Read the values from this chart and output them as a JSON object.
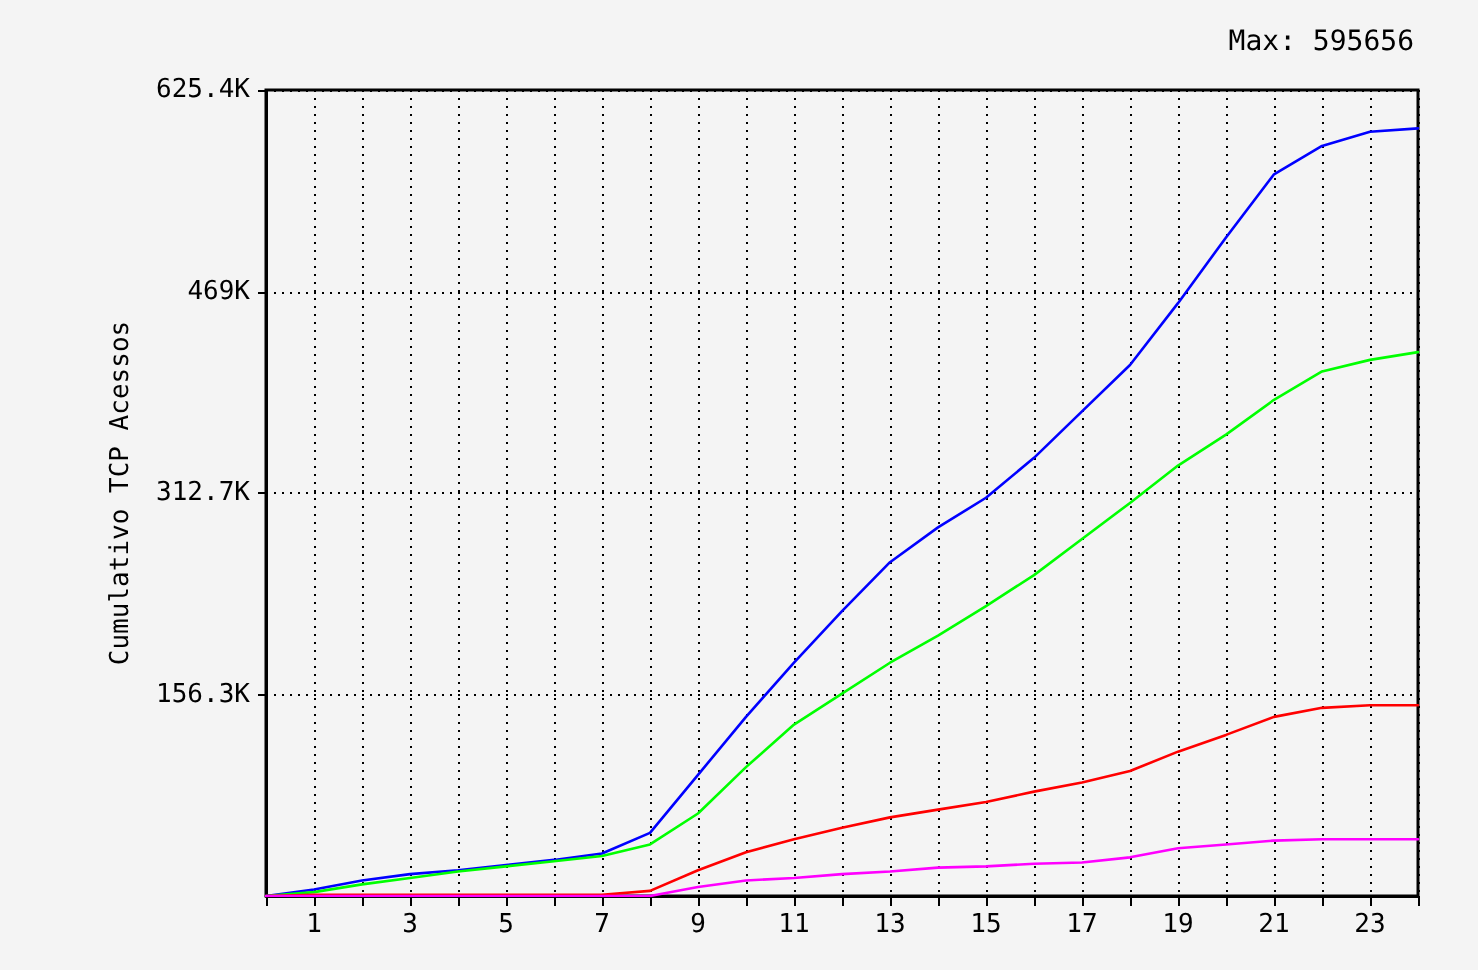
{
  "chart_data": {
    "type": "line",
    "ylabel": "Cumulativo TCP Acessos",
    "annotations": [
      "Max: 595656"
    ],
    "x": [
      0,
      1,
      2,
      3,
      4,
      5,
      6,
      7,
      8,
      9,
      10,
      11,
      12,
      13,
      14,
      15,
      16,
      17,
      18,
      19,
      20,
      21,
      22,
      23,
      24
    ],
    "series": [
      {
        "color": "#0000ff",
        "values": [
          0,
          5000,
          12000,
          17000,
          20000,
          24000,
          28000,
          33000,
          49000,
          94000,
          139000,
          181000,
          221000,
          259000,
          286000,
          309000,
          340000,
          376000,
          412000,
          460000,
          511000,
          560000,
          582000,
          593000,
          595656
        ]
      },
      {
        "color": "#00ff00",
        "values": [
          0,
          3000,
          9000,
          14000,
          19000,
          23000,
          27000,
          31000,
          40000,
          64000,
          100000,
          133000,
          157000,
          181000,
          202000,
          225000,
          249000,
          277000,
          305000,
          334000,
          358000,
          385000,
          407000,
          416000,
          422000
        ]
      },
      {
        "color": "#ff0000",
        "values": [
          0,
          1000,
          1000,
          1000,
          1000,
          1000,
          1000,
          1000,
          4000,
          20000,
          34000,
          44000,
          53000,
          61000,
          67000,
          73000,
          81000,
          88000,
          97000,
          112000,
          125000,
          139000,
          146000,
          148000,
          148000
        ]
      },
      {
        "color": "#ff00ff",
        "values": [
          0,
          0,
          0,
          0,
          0,
          0,
          0,
          0,
          0,
          7000,
          12000,
          14000,
          17000,
          19000,
          22000,
          23000,
          25000,
          26000,
          30000,
          37000,
          40000,
          43000,
          44000,
          44000,
          44000
        ]
      }
    ],
    "xlim": [
      0,
      24
    ],
    "xticks": [
      {
        "value": 0,
        "label": null
      },
      1,
      {
        "value": 2,
        "label": null
      },
      3,
      {
        "value": 4,
        "label": null
      },
      5,
      {
        "value": 6,
        "label": null
      },
      7,
      {
        "value": 8,
        "label": null
      },
      9,
      {
        "value": 10,
        "label": null
      },
      11,
      {
        "value": 12,
        "label": null
      },
      13,
      {
        "value": 14,
        "label": null
      },
      15,
      {
        "value": 16,
        "label": null
      },
      17,
      {
        "value": 18,
        "label": null
      },
      19,
      {
        "value": 20,
        "label": null
      },
      21,
      {
        "value": 22,
        "label": null
      },
      23,
      {
        "value": 24,
        "label": null
      }
    ],
    "ylim": [
      0,
      625400
    ],
    "yticks": [
      {
        "value": 156350,
        "label": "156.3K"
      },
      {
        "value": 312700,
        "label": "312.7K"
      },
      {
        "value": 469050,
        "label": "469K"
      },
      {
        "value": 625400,
        "label": "625.4K"
      }
    ],
    "grid": true,
    "marker": "none",
    "line_style": "solid"
  }
}
